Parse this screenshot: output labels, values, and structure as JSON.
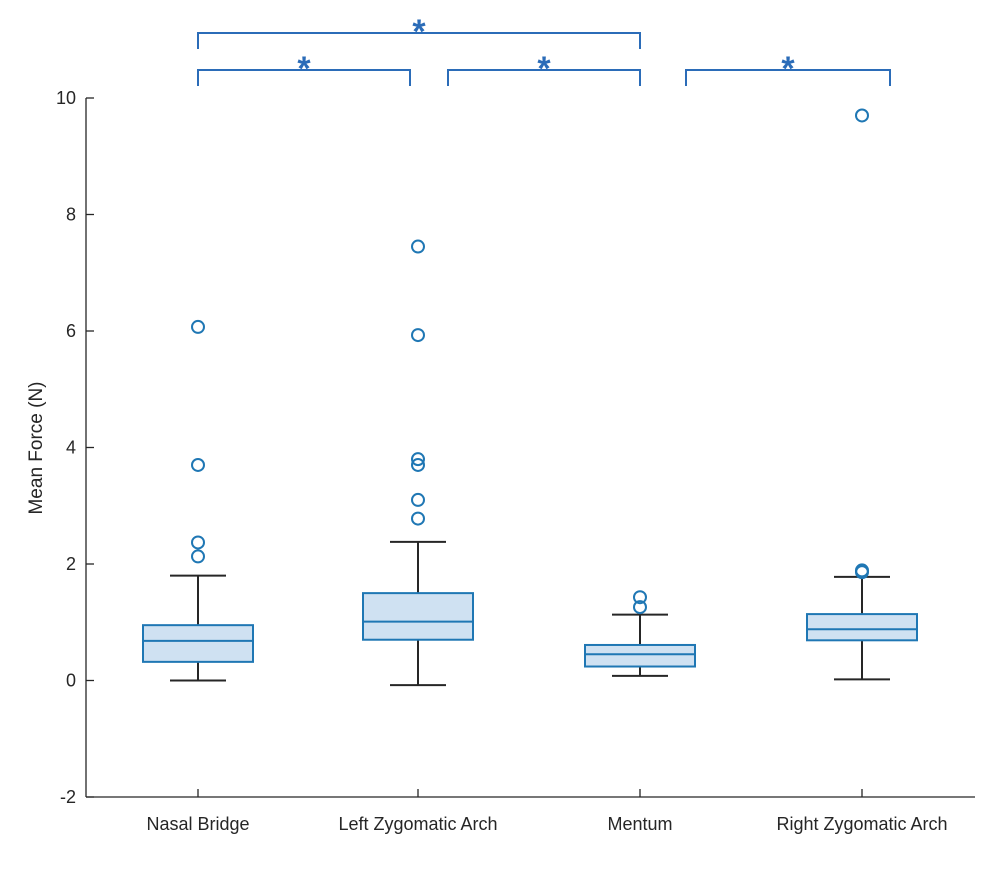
{
  "colors": {
    "box_edge": "#1f77b4",
    "box_fill": "#cfe1f2",
    "whisker": "#262626",
    "outlier": "#1f77b4",
    "axis": "#262626",
    "significance": "#2b6cb8"
  },
  "chart_data": {
    "type": "boxplot",
    "title": "",
    "xlabel": "",
    "ylabel": "Mean Force (N)",
    "ylim": [
      -2,
      10
    ],
    "yticks": [
      -2,
      0,
      2,
      4,
      6,
      8,
      10
    ],
    "ytick_labels": [
      "-2",
      "0",
      "2",
      "4",
      "6",
      "8",
      "10"
    ],
    "grid": false,
    "categories": [
      "Nasal Bridge",
      "Left Zygomatic Arch",
      "Mentum",
      "Right Zygomatic Arch"
    ],
    "boxes": [
      {
        "category": "Nasal Bridge",
        "whisker_low": 0.0,
        "q1": 0.32,
        "median": 0.68,
        "q3": 0.95,
        "whisker_high": 1.8,
        "outliers": [
          2.13,
          2.37,
          3.7,
          6.07
        ]
      },
      {
        "category": "Left Zygomatic Arch",
        "whisker_low": -0.08,
        "q1": 0.7,
        "median": 1.01,
        "q3": 1.5,
        "whisker_high": 2.38,
        "outliers": [
          2.78,
          3.1,
          3.7,
          3.8,
          5.93,
          7.45
        ]
      },
      {
        "category": "Mentum",
        "whisker_low": 0.08,
        "q1": 0.24,
        "median": 0.45,
        "q3": 0.61,
        "whisker_high": 1.13,
        "outliers": [
          1.26,
          1.43
        ]
      },
      {
        "category": "Right Zygomatic Arch",
        "whisker_low": 0.02,
        "q1": 0.69,
        "median": 0.88,
        "q3": 1.14,
        "whisker_high": 1.78,
        "outliers": [
          1.86,
          1.89,
          9.7
        ]
      }
    ],
    "significance": [
      {
        "from": "Nasal Bridge",
        "to": "Left Zygomatic Arch",
        "level": 1,
        "label": "*"
      },
      {
        "from": "Left Zygomatic Arch",
        "to": "Mentum",
        "level": 1,
        "label": "*"
      },
      {
        "from": "Mentum",
        "to": "Right Zygomatic Arch",
        "level": 1,
        "label": "*"
      },
      {
        "from": "Nasal Bridge",
        "to": "Mentum",
        "level": 2,
        "label": "*"
      }
    ]
  }
}
